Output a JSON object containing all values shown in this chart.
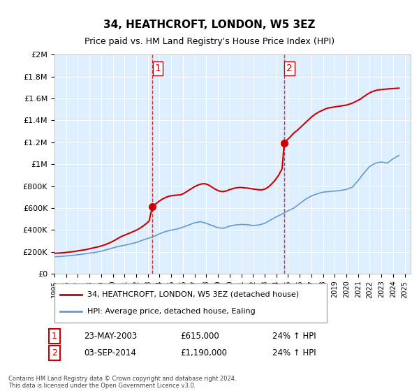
{
  "title": "34, HEATHCROFT, LONDON, W5 3EZ",
  "subtitle": "Price paid vs. HM Land Registry's House Price Index (HPI)",
  "footer": "Contains HM Land Registry data © Crown copyright and database right 2024.\nThis data is licensed under the Open Government Licence v3.0.",
  "legend_line1": "34, HEATHCROFT, LONDON, W5 3EZ (detached house)",
  "legend_line2": "HPI: Average price, detached house, Ealing",
  "transaction1_label": "1",
  "transaction1_date": "23-MAY-2003",
  "transaction1_price": "£615,000",
  "transaction1_hpi": "24% ↑ HPI",
  "transaction2_label": "2",
  "transaction2_date": "03-SEP-2014",
  "transaction2_price": "£1,190,000",
  "transaction2_hpi": "24% ↑ HPI",
  "red_color": "#cc0000",
  "blue_color": "#6699cc",
  "vline_color": "#cc0000",
  "background_color": "#ddeeff",
  "plot_bg": "#ddeeff",
  "ylim": [
    0,
    2000000
  ],
  "xlim_start": 1995.0,
  "xlim_end": 2025.5,
  "transaction1_x": 2003.39,
  "transaction2_x": 2014.67,
  "hpi_x": [
    1995,
    1995.5,
    1996,
    1996.5,
    1997,
    1997.5,
    1998,
    1998.5,
    1999,
    1999.5,
    2000,
    2000.5,
    2001,
    2001.5,
    2002,
    2002.5,
    2003,
    2003.5,
    2004,
    2004.5,
    2005,
    2005.5,
    2006,
    2006.5,
    2007,
    2007.5,
    2008,
    2008.5,
    2009,
    2009.5,
    2010,
    2010.5,
    2011,
    2011.5,
    2012,
    2012.5,
    2013,
    2013.5,
    2014,
    2014.5,
    2015,
    2015.5,
    2016,
    2016.5,
    2017,
    2017.5,
    2018,
    2018.5,
    2019,
    2019.5,
    2020,
    2020.5,
    2021,
    2021.5,
    2022,
    2022.5,
    2023,
    2023.5,
    2024,
    2024.5
  ],
  "hpi_y": [
    155000,
    157000,
    162000,
    167000,
    173000,
    180000,
    188000,
    195000,
    206000,
    220000,
    235000,
    250000,
    260000,
    272000,
    285000,
    305000,
    322000,
    340000,
    365000,
    385000,
    398000,
    408000,
    425000,
    445000,
    465000,
    475000,
    460000,
    440000,
    420000,
    415000,
    435000,
    445000,
    450000,
    448000,
    440000,
    445000,
    460000,
    490000,
    520000,
    545000,
    575000,
    600000,
    640000,
    680000,
    710000,
    730000,
    745000,
    750000,
    755000,
    760000,
    770000,
    790000,
    850000,
    920000,
    980000,
    1010000,
    1020000,
    1010000,
    1050000,
    1080000
  ],
  "prop_x": [
    1995.0,
    1995.3,
    1995.6,
    1995.9,
    1996.2,
    1996.5,
    1996.8,
    1997.1,
    1997.4,
    1997.7,
    1998.0,
    1998.3,
    1998.6,
    1998.9,
    1999.2,
    1999.5,
    1999.8,
    2000.1,
    2000.4,
    2000.7,
    2001.0,
    2001.3,
    2001.6,
    2001.9,
    2002.2,
    2002.5,
    2002.8,
    2003.1,
    2003.39,
    2003.7,
    2004.0,
    2004.3,
    2004.6,
    2004.9,
    2005.2,
    2005.5,
    2005.8,
    2006.1,
    2006.4,
    2006.7,
    2007.0,
    2007.3,
    2007.6,
    2007.9,
    2008.2,
    2008.5,
    2008.8,
    2009.1,
    2009.4,
    2009.7,
    2010.0,
    2010.3,
    2010.6,
    2010.9,
    2011.2,
    2011.5,
    2011.8,
    2012.1,
    2012.4,
    2012.7,
    2013.0,
    2013.3,
    2013.6,
    2013.9,
    2014.2,
    2014.5,
    2014.67,
    2014.9,
    2015.2,
    2015.5,
    2015.8,
    2016.1,
    2016.4,
    2016.7,
    2017.0,
    2017.3,
    2017.6,
    2017.9,
    2018.2,
    2018.5,
    2018.8,
    2019.1,
    2019.4,
    2019.7,
    2020.0,
    2020.3,
    2020.6,
    2020.9,
    2021.2,
    2021.5,
    2021.8,
    2022.1,
    2022.4,
    2022.7,
    2023.0,
    2023.3,
    2023.6,
    2023.9,
    2024.2,
    2024.5
  ],
  "prop_y": [
    185000,
    188000,
    190000,
    193000,
    197000,
    200000,
    205000,
    210000,
    215000,
    220000,
    228000,
    235000,
    242000,
    250000,
    260000,
    272000,
    285000,
    302000,
    320000,
    338000,
    352000,
    365000,
    378000,
    392000,
    408000,
    428000,
    452000,
    480000,
    615000,
    640000,
    665000,
    685000,
    700000,
    710000,
    715000,
    718000,
    720000,
    735000,
    755000,
    775000,
    795000,
    810000,
    820000,
    822000,
    810000,
    790000,
    770000,
    755000,
    750000,
    755000,
    768000,
    778000,
    785000,
    788000,
    785000,
    782000,
    778000,
    772000,
    768000,
    765000,
    772000,
    790000,
    820000,
    855000,
    900000,
    960000,
    1190000,
    1220000,
    1250000,
    1285000,
    1310000,
    1340000,
    1370000,
    1400000,
    1430000,
    1455000,
    1475000,
    1490000,
    1505000,
    1515000,
    1520000,
    1525000,
    1530000,
    1535000,
    1540000,
    1550000,
    1562000,
    1578000,
    1595000,
    1618000,
    1640000,
    1658000,
    1670000,
    1678000,
    1682000,
    1685000,
    1688000,
    1690000,
    1692000,
    1695000
  ]
}
